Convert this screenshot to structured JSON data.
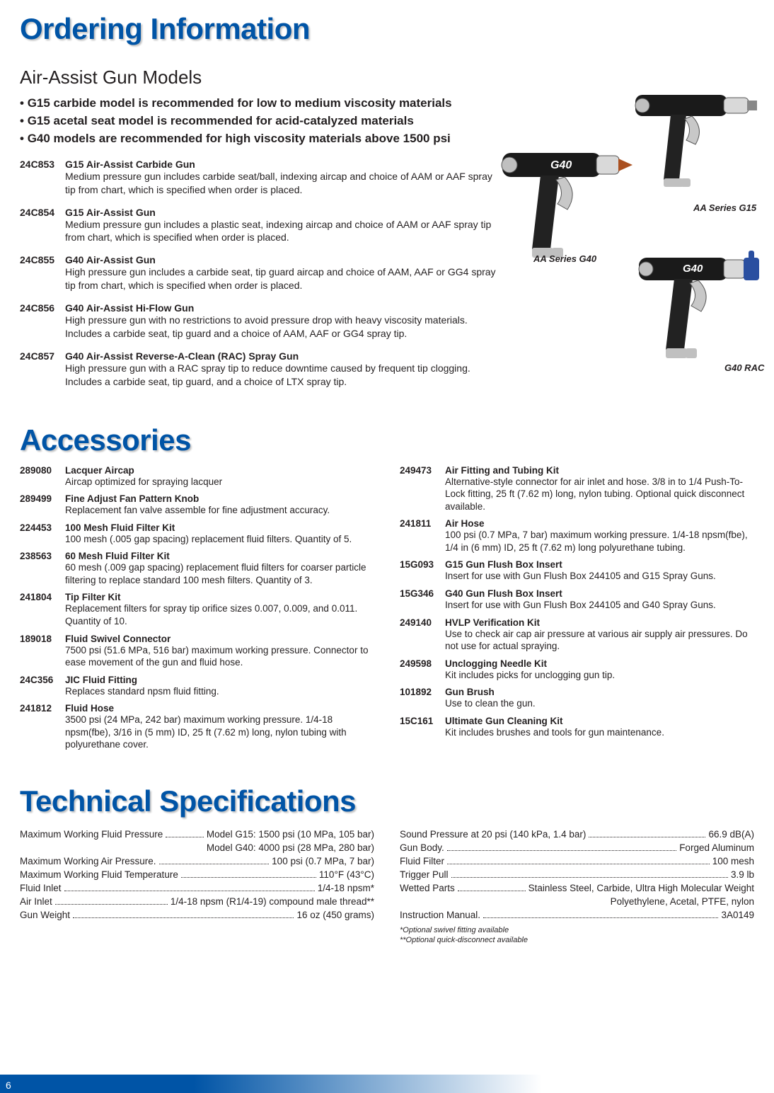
{
  "page_number": "6",
  "colors": {
    "heading_blue": "#0054a6",
    "body": "#231f20",
    "strip_gradient_start": "#0054a6",
    "strip_gradient_end": "#ffffff"
  },
  "ordering": {
    "heading": "Ordering Information",
    "subhead": "Air-Assist Gun Models",
    "bullets": [
      "G15 carbide model is recommended for low to medium viscosity materials",
      "G15 acetal seat model is recommended for acid-catalyzed materials",
      "G40 models are recommended for high viscosity materials above 1500 psi"
    ],
    "models": [
      {
        "code": "24C853",
        "title": "G15 Air-Assist Carbide Gun",
        "desc": "Medium pressure gun includes carbide seat/ball, indexing aircap and choice of AAM or AAF spray tip from chart, which is specified when order is placed."
      },
      {
        "code": "24C854",
        "title": "G15 Air-Assist Gun",
        "desc": "Medium pressure gun includes a plastic seat, indexing aircap and choice of AAM or AAF spray tip from chart, which is specified when order is placed."
      },
      {
        "code": "24C855",
        "title": "G40 Air-Assist Gun",
        "desc": "High pressure gun includes a carbide seat, tip guard aircap and choice of AAM, AAF or GG4 spray tip from chart, which is specified when order is placed."
      },
      {
        "code": "24C856",
        "title": "G40 Air-Assist Hi-Flow Gun",
        "desc": "High pressure gun with no restrictions to avoid pressure drop with heavy viscosity materials. Includes a carbide seat, tip guard and a choice of AAM, AAF or GG4 spray tip."
      },
      {
        "code": "24C857",
        "title": "G40 Air-Assist Reverse-A-Clean (RAC) Spray Gun",
        "desc": "High pressure gun with a RAC spray tip to reduce downtime caused by frequent tip clogging. Includes a carbide seat, tip guard, and a choice of LTX spray tip."
      }
    ],
    "image_labels": {
      "g15": "AA Series G15",
      "g40": "AA Series G40",
      "rac": "G40 RAC"
    }
  },
  "accessories": {
    "heading": "Accessories",
    "left": [
      {
        "code": "289080",
        "title": "Lacquer Aircap",
        "desc": "Aircap optimized for spraying lacquer"
      },
      {
        "code": "289499",
        "title": "Fine Adjust Fan Pattern Knob",
        "desc": "Replacement fan valve assemble for fine adjustment accuracy."
      },
      {
        "code": "224453",
        "title": "100 Mesh Fluid Filter Kit",
        "desc": "100 mesh (.005 gap spacing) replacement fluid filters. Quantity of 5."
      },
      {
        "code": "238563",
        "title": "60 Mesh Fluid Filter Kit",
        "desc": "60 mesh (.009 gap spacing) replacement fluid filters for coarser particle filtering to replace standard 100 mesh filters. Quantity of 3."
      },
      {
        "code": "241804",
        "title": "Tip Filter Kit",
        "desc": "Replacement filters for spray tip orifice sizes 0.007, 0.009, and 0.011. Quantity of 10."
      },
      {
        "code": "189018",
        "title": "Fluid Swivel Connector",
        "desc": "7500 psi (51.6 MPa, 516 bar) maximum working pressure. Connector to ease movement of the gun and fluid hose."
      },
      {
        "code": "24C356",
        "title": "JIC Fluid Fitting",
        "desc": "Replaces standard npsm fluid fitting."
      },
      {
        "code": "241812",
        "title": "Fluid Hose",
        "desc": "3500 psi (24 MPa, 242 bar) maximum working pressure. 1/4-18 npsm(fbe), 3/16 in (5 mm) ID, 25 ft (7.62 m) long, nylon tubing with polyurethane cover."
      }
    ],
    "right": [
      {
        "code": "249473",
        "title": "Air Fitting and Tubing Kit",
        "desc": "Alternative-style connector for air inlet and hose. 3/8 in to 1/4 Push-To-Lock fitting, 25 ft (7.62 m) long, nylon tubing. Optional quick disconnect available."
      },
      {
        "code": "241811",
        "title": "Air Hose",
        "desc": "100 psi (0.7 MPa, 7 bar) maximum working pressure. 1/4-18 npsm(fbe), 1/4 in (6 mm) ID, 25 ft (7.62 m) long polyurethane tubing."
      },
      {
        "code": "15G093",
        "title": "G15 Gun Flush Box Insert",
        "desc": "Insert for use with Gun Flush Box 244105 and G15 Spray Guns."
      },
      {
        "code": "15G346",
        "title": "G40 Gun Flush Box Insert",
        "desc": "Insert for use with Gun Flush Box 244105 and G40 Spray Guns."
      },
      {
        "code": "249140",
        "title": "HVLP Verification Kit",
        "desc": "Use to check air cap air pressure at various air supply air pressures. Do not use for actual spraying."
      },
      {
        "code": "249598",
        "title": "Unclogging Needle Kit",
        "desc": "Kit includes picks for unclogging gun tip."
      },
      {
        "code": "101892",
        "title": "Gun Brush",
        "desc": "Use to clean the gun."
      },
      {
        "code": "15C161",
        "title": "Ultimate Gun Cleaning Kit",
        "desc": "Kit includes brushes and tools for gun maintenance."
      }
    ]
  },
  "techspecs": {
    "heading": "Technical Specifications",
    "left": [
      {
        "label": "Maximum Working Fluid Pressure",
        "value": "Model G15: 1500 psi (10 MPa, 105 bar)",
        "extra": "Model G40: 4000 psi (28 MPa, 280 bar)"
      },
      {
        "label": "Maximum Working Air Pressure.",
        "value": "100 psi (0.7 MPa, 7 bar)"
      },
      {
        "label": "Maximum Working Fluid Temperature",
        "value": "110°F (43°C)"
      },
      {
        "label": "Fluid Inlet",
        "value": "1/4-18 npsm*"
      },
      {
        "label": "Air Inlet",
        "value": "1/4-18 npsm (R1/4-19) compound male thread**"
      },
      {
        "label": "Gun Weight",
        "value": "16 oz (450 grams)"
      }
    ],
    "right": [
      {
        "label": "Sound Pressure at 20 psi (140 kPa, 1.4 bar)",
        "value": "66.9 dB(A)"
      },
      {
        "label": "Gun Body.",
        "value": "Forged Aluminum"
      },
      {
        "label": "Fluid Filter",
        "value": "100 mesh"
      },
      {
        "label": "Trigger Pull",
        "value": "3.9 lb"
      },
      {
        "label": "Wetted Parts",
        "value": "Stainless Steel, Carbide, Ultra High Molecular Weight",
        "extra": "Polyethylene, Acetal, PTFE, nylon"
      },
      {
        "label": "Instruction Manual.",
        "value": "3A0149"
      }
    ],
    "footnotes": [
      "*Optional swivel fitting available",
      "**Optional quick-disconnect available"
    ]
  }
}
